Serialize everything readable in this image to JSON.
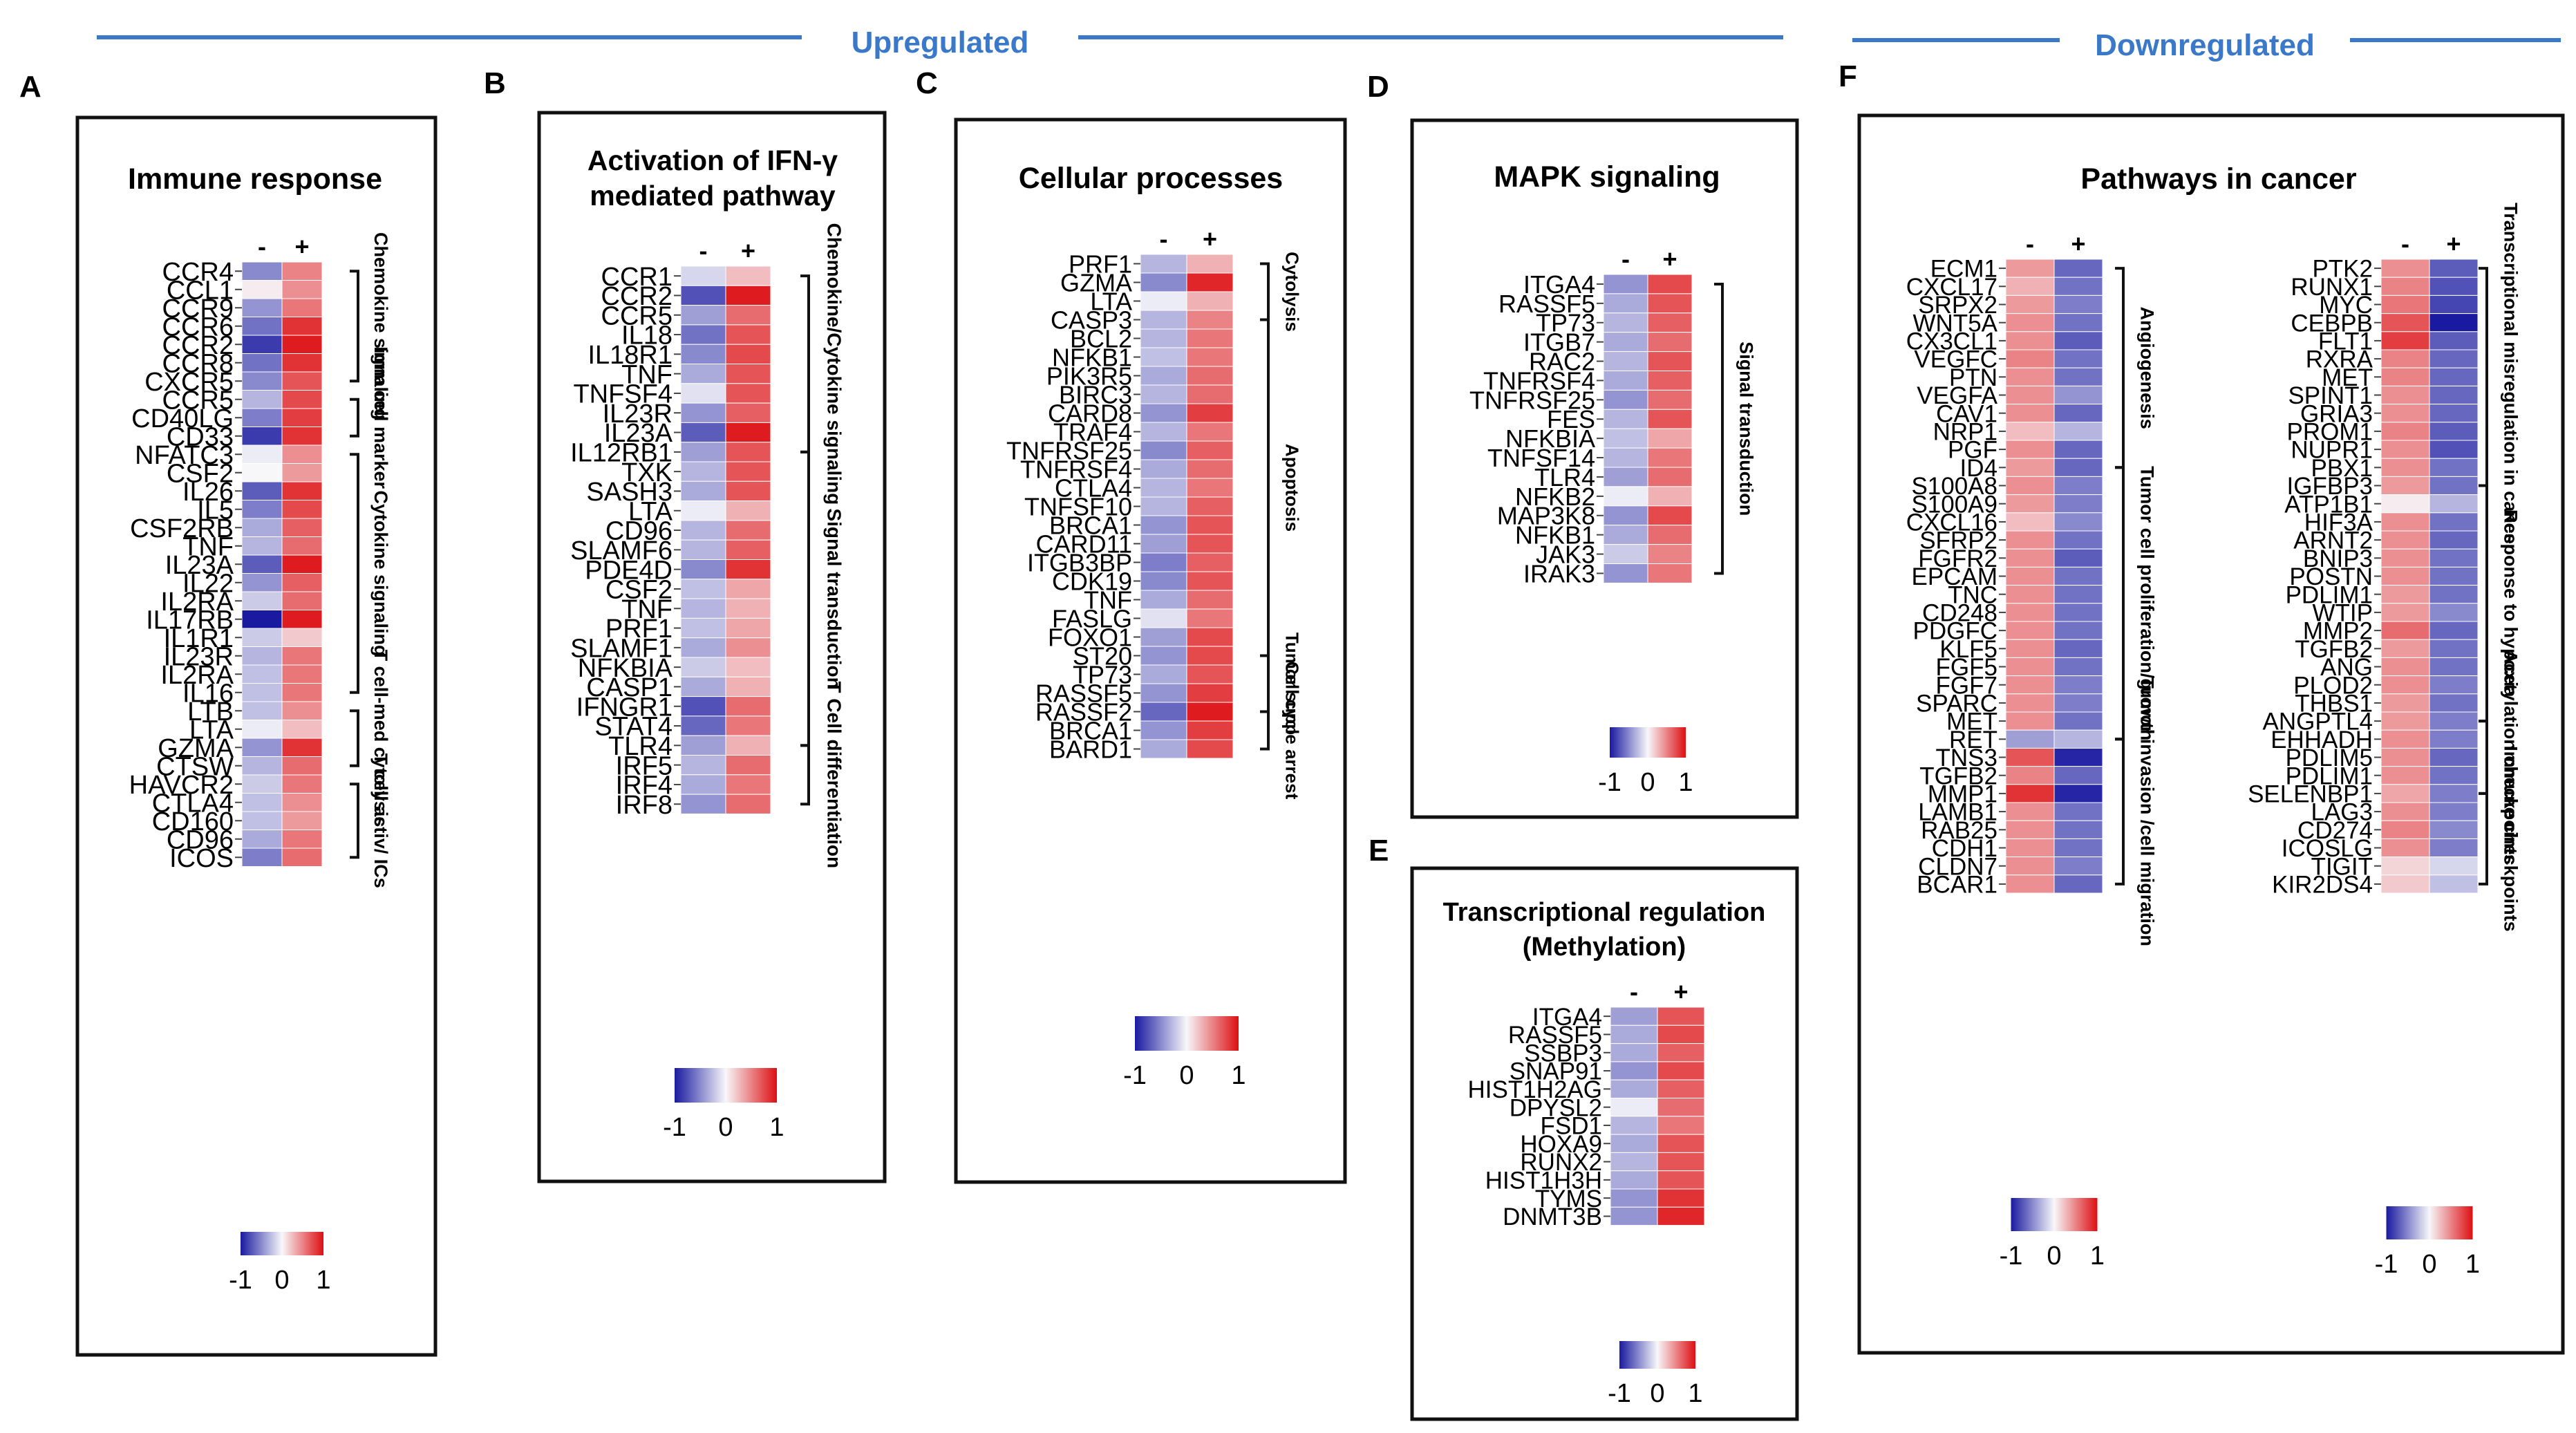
{
  "figure": {
    "banner_up": "Upregulated",
    "banner_down": "Downregulated",
    "colors": {
      "low": "#1a1aa0",
      "mid": "#f7f7fa",
      "high": "#dd0f12",
      "banner": "#3a78c9",
      "border": "#111111",
      "tick": "#444444"
    }
  },
  "chart_data": [
    {
      "type": "heatmap",
      "panel": "A",
      "title": "Immune response",
      "columns": [
        "-",
        "+"
      ],
      "genes": [
        "CCR4",
        "CCL1",
        "CCR9",
        "CCR6",
        "CCR2",
        "CCR8",
        "CXCR5",
        "CCR5",
        "CD40LG",
        "CD33",
        "NFATC3",
        "CSF2",
        "IL26",
        "IL5",
        "CSF2RB",
        "TNF",
        "IL23A",
        "IL22",
        "IL2RA",
        "IL17RB",
        "IL1R1",
        "IL23R",
        "IL2RA",
        "IL16",
        "LTB",
        "LTA",
        "GZMA",
        "CTSW",
        "HAVCR2",
        "CTLA4",
        "CD160",
        "CD96",
        "ICOS"
      ],
      "values_minus": [
        -0.5,
        0.05,
        -0.45,
        -0.6,
        -0.85,
        -0.6,
        -0.5,
        -0.3,
        -0.55,
        -0.85,
        -0.05,
        0,
        -0.7,
        -0.55,
        -0.35,
        -0.3,
        -0.7,
        -0.45,
        -0.2,
        -1,
        -0.2,
        -0.3,
        -0.25,
        -0.25,
        -0.25,
        -0.05,
        -0.45,
        -0.3,
        -0.2,
        -0.25,
        -0.25,
        -0.35,
        -0.55
      ],
      "values_plus": [
        0.5,
        0.45,
        0.55,
        0.85,
        0.95,
        0.85,
        0.7,
        0.75,
        0.8,
        0.85,
        0.45,
        0.4,
        0.85,
        0.75,
        0.65,
        0.6,
        0.95,
        0.65,
        0.6,
        0.95,
        0.2,
        0.55,
        0.55,
        0.55,
        0.45,
        0.25,
        0.85,
        0.6,
        0.55,
        0.45,
        0.4,
        0.55,
        0.6
      ],
      "groups": [
        {
          "label": "Chemokine signaling",
          "start": 0,
          "end": 6
        },
        {
          "label": "Imm cell marker",
          "start": 7,
          "end": 9
        },
        {
          "label": "Cytokine signaling",
          "start": 10,
          "end": 23
        },
        {
          "label": "T cell-med cytolysis",
          "start": 24,
          "end": 27
        },
        {
          "label": "T cell activ/ ICs",
          "start": 28,
          "end": 32
        }
      ],
      "colorbar_ticks": [
        "-1",
        "0",
        "1"
      ]
    },
    {
      "type": "heatmap",
      "panel": "B",
      "title": "Activation of IFN-γ mediated pathway",
      "columns": [
        "-",
        "+"
      ],
      "genes": [
        "CCR1",
        "CCR2",
        "CCR5",
        "IL18",
        "IL18R1",
        "TNF",
        "TNFSF4",
        "IL23R",
        "IL23A",
        "IL12RB1",
        "TXK",
        "SASH3",
        "LTA",
        "CD96",
        "SLAMF6",
        "PDE4D",
        "CSF2",
        "TNF",
        "PRF1",
        "SLAMF1",
        "NFKBIA",
        "CASP1",
        "IFNGR1",
        "STAT4",
        "TLR4",
        "IRF5",
        "IRF4",
        "IRF8"
      ],
      "values_minus": [
        -0.15,
        -0.75,
        -0.4,
        -0.6,
        -0.5,
        -0.35,
        -0.1,
        -0.45,
        -0.7,
        -0.4,
        -0.3,
        -0.35,
        -0.05,
        -0.3,
        -0.3,
        -0.5,
        -0.25,
        -0.3,
        -0.25,
        -0.35,
        -0.2,
        -0.35,
        -0.75,
        -0.65,
        -0.4,
        -0.3,
        -0.35,
        -0.45
      ],
      "values_plus": [
        0.25,
        0.95,
        0.6,
        0.7,
        0.75,
        0.7,
        0.7,
        0.65,
        0.95,
        0.7,
        0.7,
        0.7,
        0.3,
        0.6,
        0.65,
        0.85,
        0.35,
        0.3,
        0.35,
        0.45,
        0.25,
        0.3,
        0.6,
        0.55,
        0.3,
        0.6,
        0.55,
        0.6
      ],
      "groups": [
        {
          "label": "Chemokine/Cytokine signaling",
          "start": 0,
          "end": 9
        },
        {
          "label": "Signal transduction",
          "start": 9,
          "end": 24
        },
        {
          "label": "T Cell differentiation",
          "start": 24,
          "end": 27
        }
      ],
      "colorbar_ticks": [
        "-1",
        "0",
        "1"
      ]
    },
    {
      "type": "heatmap",
      "panel": "C",
      "title": "Cellular processes",
      "columns": [
        "-",
        "+"
      ],
      "genes": [
        "PRF1",
        "GZMA",
        "LTA",
        "CASP3",
        "BCL2",
        "NFKB1",
        "PIK3R5",
        "BIRC3",
        "CARD8",
        "TRAF4",
        "TNFRSF25",
        "TNFRSF4",
        "CTLA4",
        "TNFSF10",
        "BRCA1",
        "CARD11",
        "ITGB3BP",
        "CDK19",
        "TNF",
        "FASLG",
        "FOXO1",
        "ST20",
        "TP73",
        "RASSF5",
        "RASSF2",
        "BRCA1",
        "BARD1"
      ],
      "values_minus": [
        -0.3,
        -0.5,
        -0.05,
        -0.3,
        -0.3,
        -0.25,
        -0.35,
        -0.3,
        -0.45,
        -0.3,
        -0.5,
        -0.35,
        -0.3,
        -0.3,
        -0.45,
        -0.4,
        -0.55,
        -0.5,
        -0.35,
        -0.1,
        -0.4,
        -0.45,
        -0.35,
        -0.45,
        -0.65,
        -0.45,
        -0.35
      ],
      "values_plus": [
        0.3,
        0.9,
        0.3,
        0.5,
        0.55,
        0.55,
        0.6,
        0.6,
        0.8,
        0.55,
        0.65,
        0.6,
        0.55,
        0.65,
        0.7,
        0.7,
        0.65,
        0.7,
        0.6,
        0.55,
        0.75,
        0.75,
        0.7,
        0.8,
        0.95,
        0.8,
        0.75
      ],
      "groups": [
        {
          "label": "Cytolysis",
          "start": 0,
          "end": 3
        },
        {
          "label": "Apoptosis",
          "start": 3,
          "end": 21
        },
        {
          "label": "Tumor supp",
          "start": 21,
          "end": 24
        },
        {
          "label": "Cell cycle arrest",
          "start": 24,
          "end": 26
        }
      ],
      "colorbar_ticks": [
        "-1",
        "0",
        "1"
      ]
    },
    {
      "type": "heatmap",
      "panel": "D",
      "title": "MAPK signaling",
      "columns": [
        "-",
        "+"
      ],
      "genes": [
        "ITGA4",
        "RASSF5",
        "TP73",
        "ITGB7",
        "RAC2",
        "TNFRSF4",
        "TNFRSF25",
        "FES",
        "NFKBIA",
        "TNFSF14",
        "TLR4",
        "NFKB2",
        "MAP3K8",
        "NFKB1",
        "JAK3",
        "IRAK3"
      ],
      "values_minus": [
        -0.45,
        -0.35,
        -0.3,
        -0.35,
        -0.3,
        -0.35,
        -0.45,
        -0.3,
        -0.25,
        -0.3,
        -0.4,
        -0.05,
        -0.45,
        -0.35,
        -0.2,
        -0.45
      ],
      "values_plus": [
        0.75,
        0.7,
        0.65,
        0.6,
        0.7,
        0.65,
        0.6,
        0.7,
        0.35,
        0.55,
        0.6,
        0.3,
        0.75,
        0.6,
        0.5,
        0.55
      ],
      "groups": [
        {
          "label": "Signal transduction",
          "start": 0,
          "end": 15
        }
      ],
      "colorbar_ticks": [
        "-1",
        "0",
        "1"
      ]
    },
    {
      "type": "heatmap",
      "panel": "E",
      "title": "Transcriptional regulation (Methylation)",
      "columns": [
        "-",
        "+"
      ],
      "genes": [
        "ITGA4",
        "RASSF5",
        "SSBP3",
        "SNAP91",
        "HIST1H2AG",
        "DPYSL2",
        "FSD1",
        "HOXA9",
        "RUNX2",
        "HIST1H3H",
        "TYMS",
        "DNMT3B"
      ],
      "values_minus": [
        -0.4,
        -0.35,
        -0.35,
        -0.45,
        -0.35,
        -0.05,
        -0.3,
        -0.35,
        -0.3,
        -0.35,
        -0.45,
        -0.45
      ],
      "values_plus": [
        0.7,
        0.75,
        0.65,
        0.75,
        0.65,
        0.6,
        0.55,
        0.7,
        0.7,
        0.7,
        0.85,
        0.9
      ],
      "groups": [],
      "colorbar_ticks": [
        "-1",
        "0",
        "1"
      ]
    },
    {
      "type": "heatmap",
      "panel": "F",
      "title": "Pathways in cancer",
      "columns": [
        "-",
        "+"
      ],
      "genes": [
        "ECM1",
        "CXCL17",
        "SRPX2",
        "WNT5A",
        "CX3CL1",
        "VEGFC",
        "PTN",
        "VEGFA",
        "CAV1",
        "NRP1",
        "PGF",
        "ID4",
        "S100A8",
        "S100A9",
        "CXCL16",
        "SFRP2",
        "FGFR2",
        "EPCAM",
        "TNC",
        "CD248",
        "PDGFC",
        "KLF5",
        "FGF5",
        "FGF7",
        "SPARC",
        "MET",
        "RET",
        "TNS3",
        "TGFB2",
        "MMP1",
        "LAMB1",
        "RAB25",
        "CDH1",
        "CLDN7",
        "BCAR1"
      ],
      "values_minus": [
        0.4,
        0.3,
        0.4,
        0.45,
        0.45,
        0.5,
        0.45,
        0.45,
        0.45,
        0.25,
        0.45,
        0.4,
        0.45,
        0.4,
        0.25,
        0.45,
        0.45,
        0.45,
        0.45,
        0.45,
        0.45,
        0.45,
        0.45,
        0.45,
        0.45,
        0.45,
        -0.4,
        0.7,
        0.5,
        0.85,
        0.45,
        0.45,
        0.45,
        0.45,
        0.45
      ],
      "values_plus": [
        -0.65,
        -0.6,
        -0.55,
        -0.6,
        -0.7,
        -0.6,
        -0.6,
        -0.45,
        -0.65,
        -0.3,
        -0.65,
        -0.65,
        -0.55,
        -0.55,
        -0.5,
        -0.6,
        -0.7,
        -0.6,
        -0.6,
        -0.6,
        -0.6,
        -0.65,
        -0.6,
        -0.55,
        -0.55,
        -0.6,
        -0.3,
        -0.95,
        -0.65,
        -0.95,
        -0.6,
        -0.6,
        -0.6,
        -0.55,
        -0.65
      ],
      "groups": [
        {
          "label": "Angiogenesis",
          "start": 0,
          "end": 11
        },
        {
          "label": "Tumor cell proliferation/growth",
          "start": 11,
          "end": 26
        },
        {
          "label": "Tumor invasion /cell migration",
          "start": 26,
          "end": 34
        }
      ],
      "colorbar_ticks": [
        "-1",
        "0",
        "1"
      ],
      "second_heatmap": {
        "genes": [
          "PTK2",
          "RUNX1",
          "MYC",
          "CEBPB",
          "FLT1",
          "RXRA",
          "MET",
          "SPINT1",
          "GRIA3",
          "PROM1",
          "NUPR1",
          "PBX1",
          "IGFBP3",
          "ATP1B1",
          "HIF3A",
          "ARNT2",
          "BNIP3",
          "POSTN",
          "PDLIM1",
          "WTIP",
          "MMP2",
          "TGFB2",
          "ANG",
          "PLOD2",
          "THBS1",
          "ANGPTL4",
          "EHHADH",
          "PDLIM5",
          "PDLIM1",
          "SELENBP1",
          "LAG3",
          "CD274",
          "ICOSLG",
          "TIGIT",
          "KIR2DS4"
        ],
        "values_minus": [
          0.45,
          0.5,
          0.55,
          0.7,
          0.8,
          0.5,
          0.5,
          0.45,
          0.45,
          0.5,
          0.45,
          0.45,
          0.4,
          0.05,
          0.45,
          0.45,
          0.45,
          0.45,
          0.4,
          0.4,
          0.6,
          0.4,
          0.45,
          0.45,
          0.4,
          0.4,
          0.45,
          0.45,
          0.45,
          0.35,
          0.45,
          0.5,
          0.45,
          0.15,
          0.2
        ],
        "values_plus": [
          -0.7,
          -0.75,
          -0.8,
          -1,
          -0.7,
          -0.65,
          -0.65,
          -0.65,
          -0.65,
          -0.7,
          -0.75,
          -0.6,
          -0.6,
          -0.3,
          -0.6,
          -0.65,
          -0.6,
          -0.6,
          -0.6,
          -0.5,
          -0.65,
          -0.6,
          -0.6,
          -0.55,
          -0.6,
          -0.55,
          -0.55,
          -0.65,
          -0.6,
          -0.55,
          -0.55,
          -0.5,
          -0.55,
          -0.15,
          -0.25
        ],
        "groups": [
          {
            "label": "Transcriptional misregulation in cancer",
            "start": 0,
            "end": 12
          },
          {
            "label": "Response to hypoxia",
            "start": 12,
            "end": 25
          },
          {
            "label": "Acetylation checkpoints",
            "start": 25,
            "end": 29
          },
          {
            "label": "Immune checkpoints",
            "start": 29,
            "end": 34
          }
        ],
        "colorbar_ticks": [
          "-1",
          "0",
          "1"
        ]
      }
    }
  ]
}
